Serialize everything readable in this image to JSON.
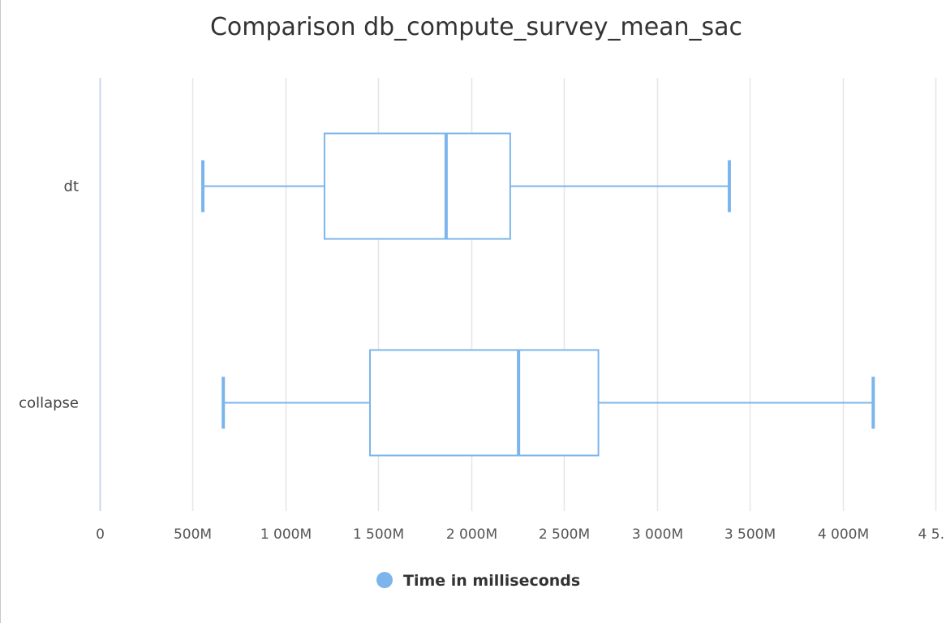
{
  "chart_data": {
    "type": "boxplot",
    "orientation": "horizontal",
    "title": "Comparison db_compute_survey_mean_sac",
    "xlabel": "",
    "ylabel": "",
    "xlim": [
      0,
      4500
    ],
    "x_ticks": [
      0,
      500,
      1000,
      1500,
      2000,
      2500,
      3000,
      3500,
      4000,
      4500
    ],
    "x_tick_labels": [
      "0",
      "500M",
      "1 000M",
      "1 500M",
      "2 000M",
      "2 500M",
      "3 000M",
      "3 500M",
      "4 000M",
      "4 5…"
    ],
    "categories": [
      "dt",
      "collapse"
    ],
    "series": [
      {
        "name": "Time in milliseconds",
        "color": "#7cb5ec",
        "boxes": [
          {
            "category": "dt",
            "low": 555,
            "q1": 1210,
            "median": 1865,
            "q3": 2210,
            "high": 3390
          },
          {
            "category": "collapse",
            "low": 665,
            "q1": 1455,
            "median": 2255,
            "q3": 2685,
            "high": 4165
          }
        ]
      }
    ],
    "grid": true,
    "legend_position": "bottom-center"
  }
}
